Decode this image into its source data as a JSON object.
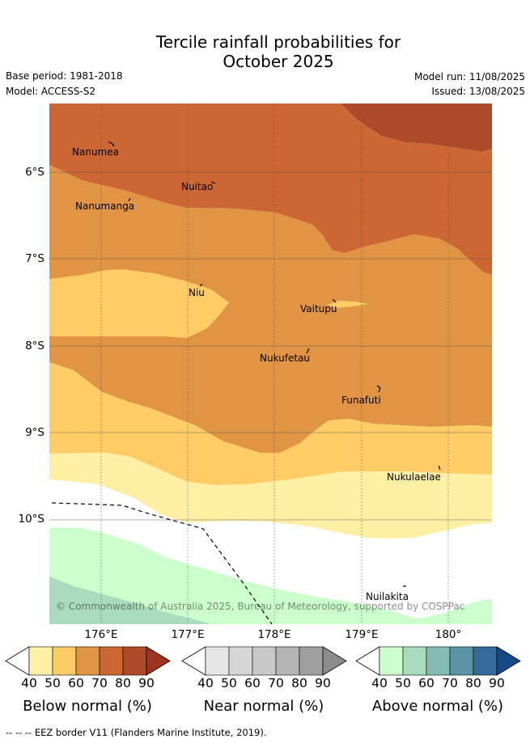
{
  "title_line1": "Tercile rainfall probabilities for",
  "title_line2": "October 2025",
  "base_period": "Base period: 1981-2018",
  "model": "Model: ACCESS-S2",
  "model_run": "Model run: 11/08/2025",
  "issued": "Issued: 13/08/2025",
  "lat_labels": [
    "6°S",
    "7°S",
    "8°S",
    "9°S",
    "10°S"
  ],
  "lon_labels": [
    "176°E",
    "177°E",
    "178°E",
    "179°E",
    "180°"
  ],
  "places": [
    {
      "name": "Nanumea"
    },
    {
      "name": "Nuitao"
    },
    {
      "name": "Nanumanga"
    },
    {
      "name": "Niu"
    },
    {
      "name": "Vaitupu"
    },
    {
      "name": "Nukufetau"
    },
    {
      "name": "Funafuti"
    },
    {
      "name": "Nukulaelae"
    },
    {
      "name": "Nuilakita"
    }
  ],
  "copyright": "© Commonwealth of Australia 2025, Bureau of Meteorology, supported by COSPPac",
  "colorbars": [
    {
      "title": "Below normal (%)",
      "ticks": [
        "40",
        "50",
        "60",
        "70",
        "80",
        "90"
      ],
      "colors": [
        "#fff0a6",
        "#ffcc66",
        "#e09444",
        "#cc6633",
        "#ad4a2a",
        "#9e3320"
      ]
    },
    {
      "title": "Near normal (%)",
      "ticks": [
        "40",
        "50",
        "60",
        "70",
        "80",
        "90"
      ],
      "colors": [
        "#e6e6e6",
        "#d6d6d6",
        "#c8c8c8",
        "#b4b4b4",
        "#a0a0a0",
        "#8c8c8c"
      ]
    },
    {
      "title": "Above normal (%)",
      "ticks": [
        "40",
        "50",
        "60",
        "70",
        "80",
        "90"
      ],
      "colors": [
        "#ccffcc",
        "#a8dcbc",
        "#84bcb4",
        "#5a94a4",
        "#346a9c",
        "#164a84"
      ]
    }
  ],
  "footer": "--  --  -- EEZ border V11 (Flanders Marine Institute, 2019)."
}
